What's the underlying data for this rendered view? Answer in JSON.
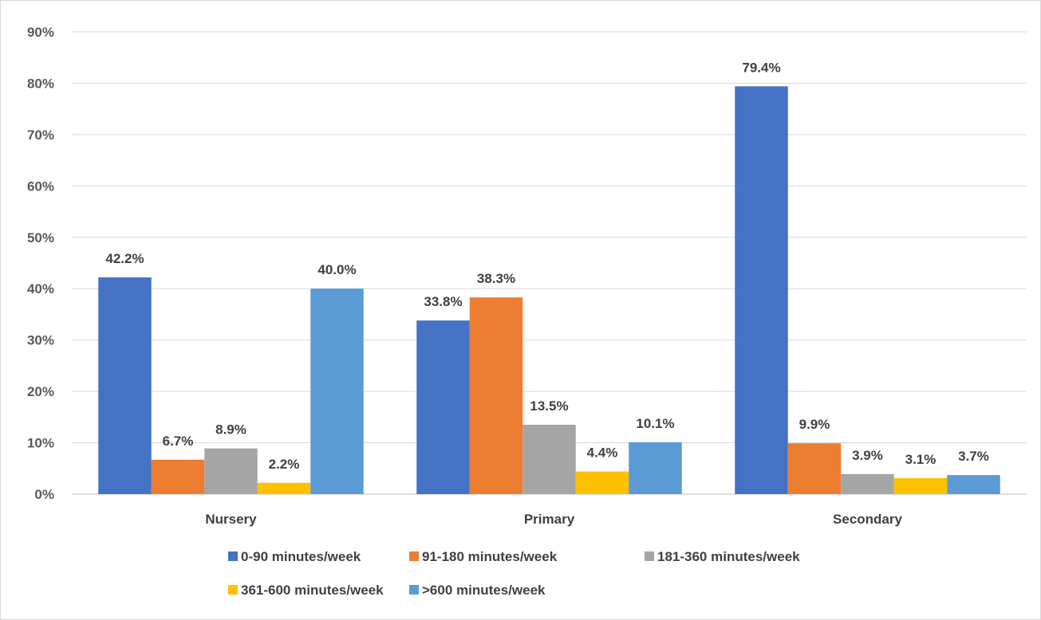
{
  "chart_data": {
    "type": "bar",
    "categories": [
      "Nursery",
      "Primary",
      "Secondary"
    ],
    "series": [
      {
        "name": "0-90 minutes/week",
        "color": "#4472c4",
        "values": [
          42.2,
          33.8,
          79.4
        ]
      },
      {
        "name": "91-180 minutes/week",
        "color": "#ed7d31",
        "values": [
          6.7,
          38.3,
          9.9
        ]
      },
      {
        "name": "181-360 minutes/week",
        "color": "#a5a5a5",
        "values": [
          8.9,
          13.5,
          3.9
        ]
      },
      {
        "name": "361-600 minutes/week",
        "color": "#ffc000",
        "values": [
          2.2,
          4.4,
          3.1
        ]
      },
      {
        "name": ">600 minutes/week",
        "color": "#5b9bd5",
        "values": [
          40.0,
          10.1,
          3.7
        ]
      }
    ],
    "ylim": [
      0,
      90
    ],
    "yticks": [
      0,
      10,
      20,
      30,
      40,
      50,
      60,
      70,
      80,
      90
    ],
    "ytick_labels": [
      "0%",
      "10%",
      "20%",
      "30%",
      "40%",
      "50%",
      "60%",
      "70%",
      "80%",
      "90%"
    ],
    "grid": true,
    "legend_position": "bottom",
    "title": "",
    "xlabel": "",
    "ylabel": ""
  }
}
